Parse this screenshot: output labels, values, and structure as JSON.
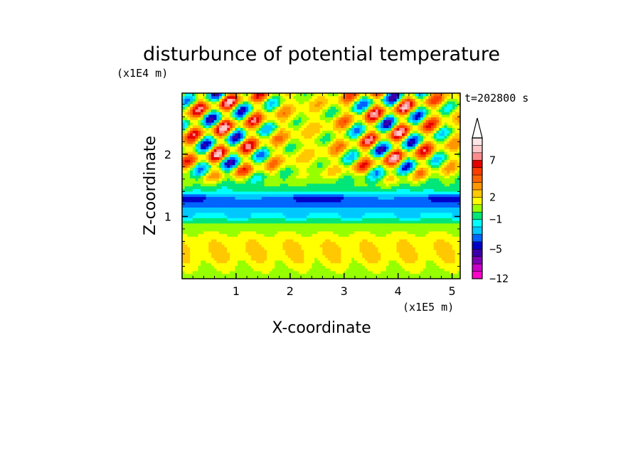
{
  "chart_data": {
    "type": "heatmap",
    "title": "disturbunce of potential temperature",
    "xlabel": "X-coordinate",
    "ylabel": "Z-coordinate",
    "x_unit": "(x1E5 m)",
    "y_unit": "(x1E4 m)",
    "time_label": "t=202800 s",
    "xlim": [
      0,
      5.15
    ],
    "ylim": [
      0,
      2.98
    ],
    "x_ticks": [
      "1",
      "2",
      "3",
      "4",
      "5"
    ],
    "y_ticks": [
      "1",
      "2"
    ],
    "colorbar": {
      "levels": [
        -12,
        -10,
        -8,
        -6,
        -5,
        -4,
        -3,
        -2,
        -1,
        0,
        1,
        2,
        3,
        4,
        5,
        6,
        7,
        8,
        9,
        10
      ],
      "tick_labels": [
        "7",
        "2",
        "-1",
        "-5",
        "-12"
      ],
      "colors": [
        "#ff00c8",
        "#c800c8",
        "#7d00b4",
        "#3c00aa",
        "#0000c8",
        "#0064ff",
        "#00c8ff",
        "#00ffff",
        "#00e678",
        "#96ff00",
        "#ffff00",
        "#ffc800",
        "#ff9600",
        "#ff6400",
        "#ff3c00",
        "#e60000",
        "#ff8c8c",
        "#ffc8c8",
        "#ffe6e6"
      ]
    },
    "summary": {
      "lower_layer_0_to_0.8": "weak positive (yellow/orange, 1 to 3)",
      "band_1.0_to_1.4": "negative (cyan to blue, -1 to -5)",
      "upper_layer_1.6_to_2.98": "alternating wave pattern, -6 to +8"
    }
  }
}
